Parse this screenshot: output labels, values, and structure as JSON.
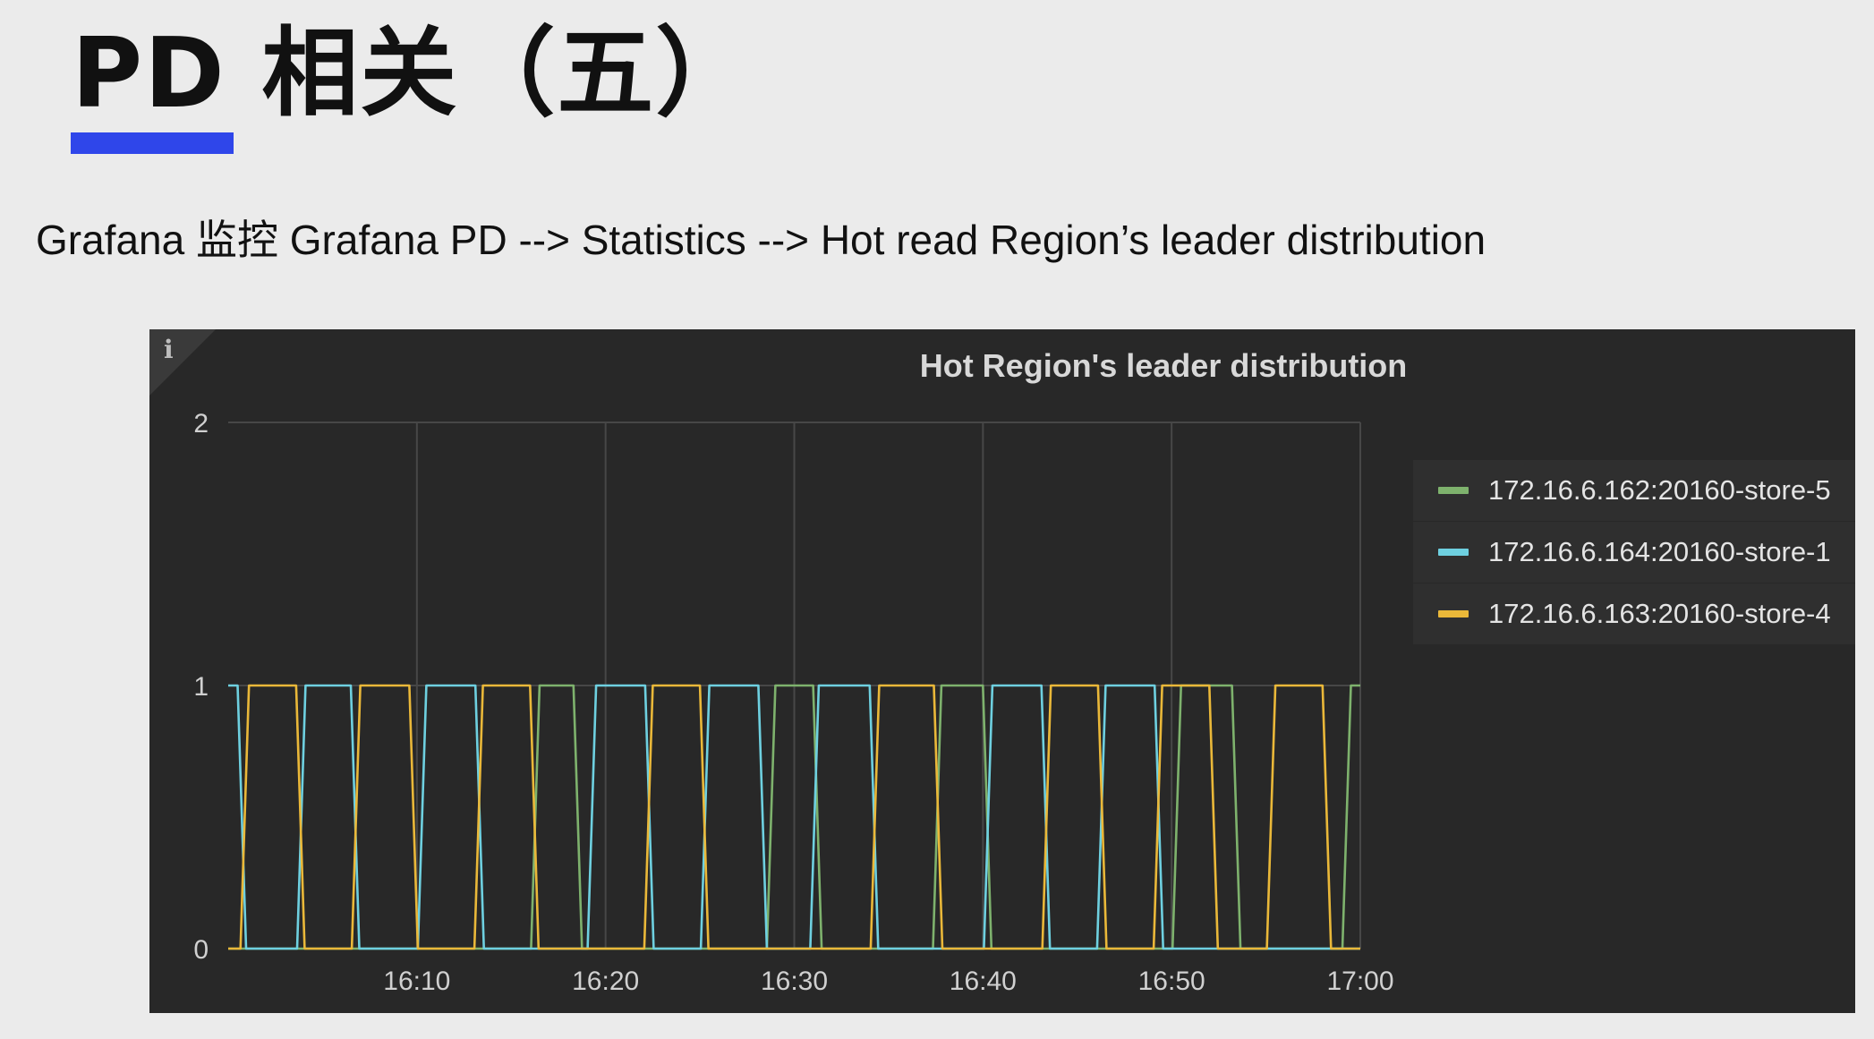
{
  "slide": {
    "title": "PD 相关（五）",
    "accent_color": "#2f46ea",
    "subtitle": "Grafana 监控 Grafana PD --> Statistics --> Hot read Region’s leader distribution"
  },
  "panel": {
    "info_icon": "info-icon",
    "info_glyph": "i",
    "background": "#282828"
  },
  "chart_data": {
    "type": "line",
    "title": "Hot Region's leader distribution",
    "xlabel": "",
    "ylabel": "",
    "x_ticks": [
      "16:10",
      "16:20",
      "16:30",
      "16:40",
      "16:50",
      "17:00"
    ],
    "y_ticks": [
      0,
      1,
      2
    ],
    "xlim": [
      "16:00",
      "17:00"
    ],
    "ylim": [
      0,
      2
    ],
    "grid": true,
    "legend_position": "right",
    "series": [
      {
        "name": "172.16.6.162:20160-store-5",
        "color": "#7eb26d",
        "segments": [
          [
            "16:16.5",
            "16:18.3"
          ],
          [
            "16:29.0",
            "16:31.0"
          ],
          [
            "16:37.8",
            "16:40.0"
          ],
          [
            "16:50.5",
            "16:53.2"
          ],
          [
            "16:59.5",
            "17:00"
          ]
        ]
      },
      {
        "name": "172.16.6.164:20160-store-1",
        "color": "#6ed0e0",
        "segments": [
          [
            "16:00.0",
            "16:00.5"
          ],
          [
            "16:04.1",
            "16:06.5"
          ],
          [
            "16:10.5",
            "16:13.1"
          ],
          [
            "16:19.5",
            "16:22.1"
          ],
          [
            "16:25.5",
            "16:28.1"
          ],
          [
            "16:31.3",
            "16:34.0"
          ],
          [
            "16:40.5",
            "16:43.1"
          ],
          [
            "16:46.5",
            "16:49.1"
          ]
        ]
      },
      {
        "name": "172.16.6.163:20160-store-4",
        "color": "#eab839",
        "segments": [
          [
            "16:01.1",
            "16:03.6"
          ],
          [
            "16:07.0",
            "16:09.6"
          ],
          [
            "16:13.5",
            "16:16.0"
          ],
          [
            "16:22.5",
            "16:25.0"
          ],
          [
            "16:34.5",
            "16:37.4"
          ],
          [
            "16:43.6",
            "16:46.1"
          ],
          [
            "16:49.5",
            "16:52.0"
          ],
          [
            "16:55.5",
            "16:58.0"
          ]
        ]
      }
    ]
  }
}
